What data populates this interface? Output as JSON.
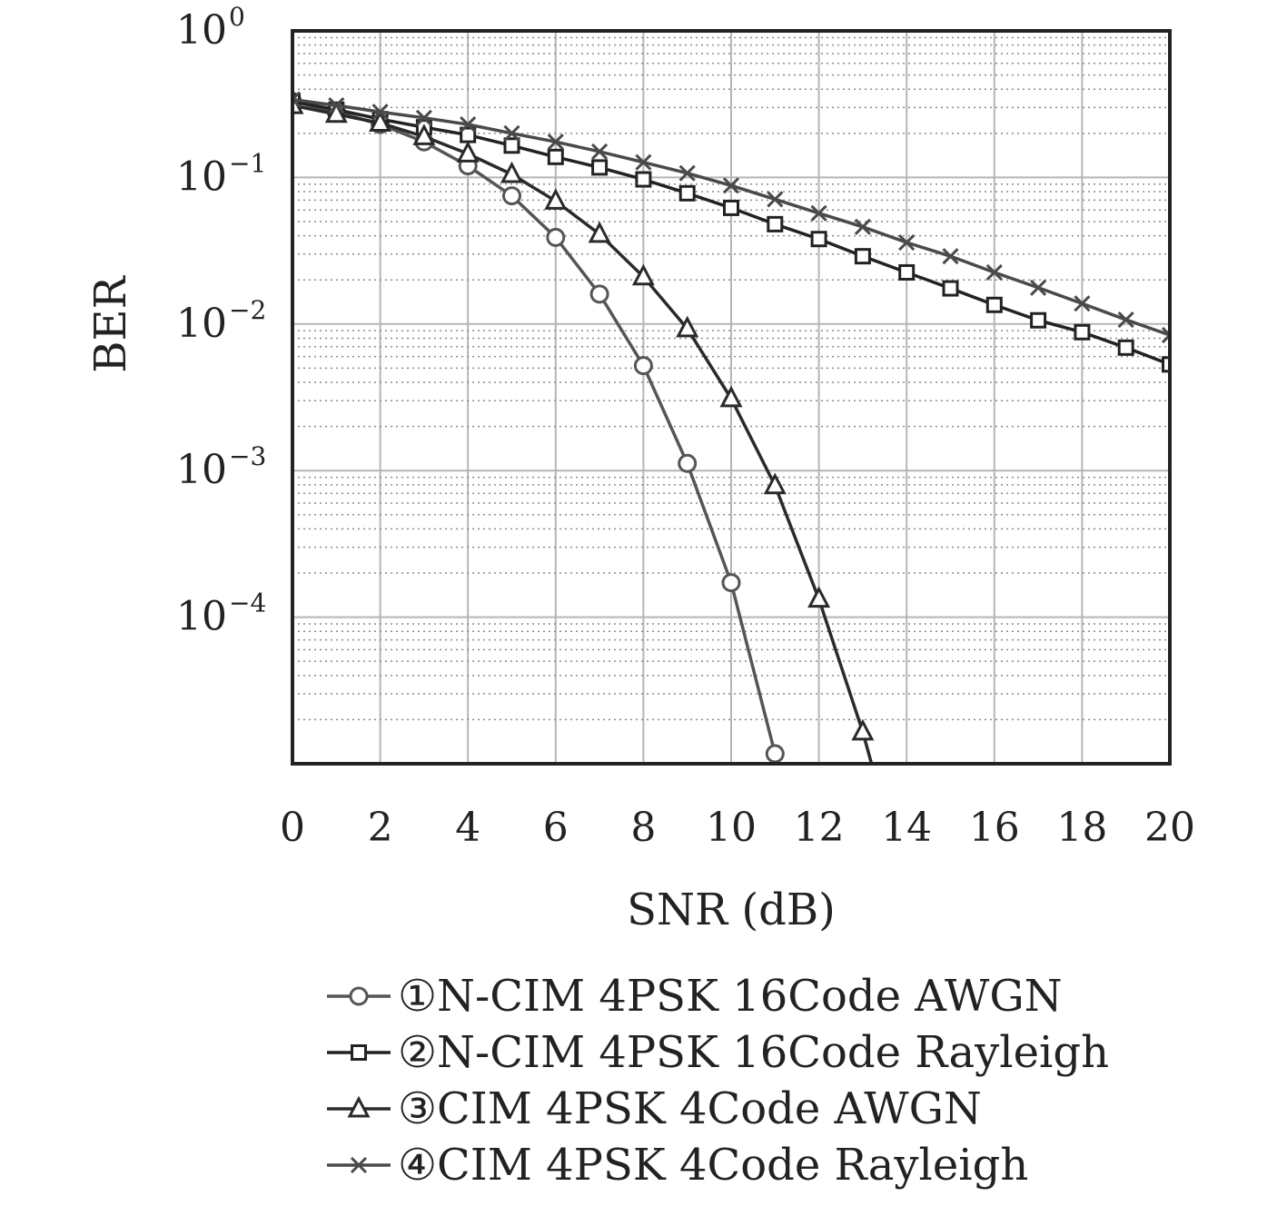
{
  "chart_data": {
    "type": "line",
    "xlabel": "SNR (dB)",
    "ylabel": "BER",
    "x_scale": "linear",
    "y_scale": "log",
    "xlim": [
      0,
      20
    ],
    "ylim": [
      1e-05,
      1
    ],
    "x_ticks": [
      0,
      2,
      4,
      6,
      8,
      10,
      12,
      14,
      16,
      18,
      20
    ],
    "y_ticks": [
      {
        "base": "10",
        "exp": "0"
      },
      {
        "base": "10",
        "exp": "−1"
      },
      {
        "base": "10",
        "exp": "−2"
      },
      {
        "base": "10",
        "exp": "−3"
      },
      {
        "base": "10",
        "exp": "−4"
      }
    ],
    "y_tick_values": [
      1,
      0.1,
      0.01,
      0.001,
      0.0001
    ],
    "grid": true,
    "legend_position": "bottom",
    "series": [
      {
        "name": "①N-CIM 4PSK 16Code AWGN",
        "marker": "circle",
        "color": "#555555",
        "x": [
          0,
          1,
          2,
          3,
          4,
          5,
          6,
          7,
          8,
          9,
          10,
          11
        ],
        "y": [
          0.33,
          0.28,
          0.23,
          0.175,
          0.12,
          0.075,
          0.039,
          0.016,
          0.0052,
          0.00112,
          0.000172,
          1.17e-05
        ]
      },
      {
        "name": "②N-CIM 4PSK 16Code Rayleigh",
        "marker": "square",
        "color": "#222222",
        "x": [
          0,
          1,
          2,
          3,
          4,
          5,
          6,
          7,
          8,
          9,
          10,
          11,
          12,
          13,
          14,
          15,
          16,
          17,
          18,
          19,
          20
        ],
        "y": [
          0.33,
          0.29,
          0.25,
          0.22,
          0.195,
          0.165,
          0.138,
          0.117,
          0.097,
          0.078,
          0.062,
          0.048,
          0.038,
          0.029,
          0.0225,
          0.0175,
          0.0135,
          0.0106,
          0.0088,
          0.0069,
          0.0053
        ]
      },
      {
        "name": "③CIM 4PSK 4Code AWGN",
        "marker": "triangle",
        "color": "#2a2a2a",
        "x": [
          0,
          1,
          2,
          3,
          4,
          5,
          6,
          7,
          8,
          9,
          10,
          11,
          12,
          13,
          13.2
        ],
        "y": [
          0.31,
          0.27,
          0.235,
          0.19,
          0.145,
          0.105,
          0.069,
          0.041,
          0.021,
          0.0093,
          0.0031,
          0.00079,
          0.000133,
          1.65e-05,
          1e-05
        ]
      },
      {
        "name": "④CIM 4PSK 4Code Rayleigh",
        "marker": "x",
        "color": "#4a4a4a",
        "x": [
          0,
          1,
          2,
          3,
          4,
          5,
          6,
          7,
          8,
          9,
          10,
          11,
          12,
          13,
          14,
          15,
          16,
          17,
          18,
          19,
          20
        ],
        "y": [
          0.34,
          0.31,
          0.28,
          0.255,
          0.23,
          0.2,
          0.175,
          0.15,
          0.127,
          0.107,
          0.088,
          0.071,
          0.057,
          0.046,
          0.036,
          0.029,
          0.0225,
          0.0177,
          0.0138,
          0.0107,
          0.0084
        ]
      }
    ]
  }
}
